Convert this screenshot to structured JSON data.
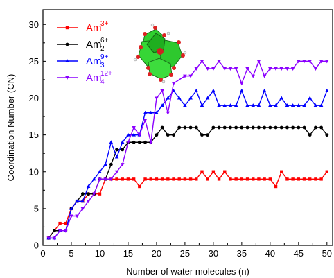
{
  "chart_data": {
    "type": "line",
    "xlabel": "Number of water molecules (n)",
    "ylabel": "Coordination Number (CN)",
    "xlim": [
      0,
      51
    ],
    "ylim": [
      0,
      32
    ],
    "x_ticks": [
      "0",
      "5",
      "10",
      "15",
      "20",
      "25",
      "30",
      "35",
      "40",
      "45",
      "50"
    ],
    "y_ticks": [
      "0",
      "5",
      "10",
      "15",
      "20",
      "25",
      "30"
    ],
    "legend_position": "top-left",
    "inset": "polyhedron-cluster-icon",
    "series": [
      {
        "name": "Am",
        "sub": "",
        "sup": "3+",
        "color": "#ff0000",
        "marker": "square",
        "x": [
          1,
          2,
          3,
          4,
          5,
          6,
          7,
          8,
          9,
          10,
          11,
          12,
          13,
          14,
          15,
          16,
          17,
          18,
          19,
          20,
          21,
          22,
          23,
          24,
          25,
          26,
          27,
          28,
          29,
          30,
          31,
          32,
          33,
          34,
          35,
          36,
          37,
          38,
          39,
          40,
          41,
          42,
          43,
          44,
          45,
          46,
          47,
          48,
          49,
          50
        ],
        "y": [
          1,
          2,
          3,
          3,
          5,
          6,
          6,
          7,
          7,
          7,
          9,
          9,
          9,
          9,
          9,
          9,
          8,
          9,
          9,
          9,
          9,
          9,
          9,
          9,
          9,
          9,
          9,
          10,
          9,
          10,
          9,
          10,
          9,
          9,
          9,
          9,
          9,
          9,
          9,
          9,
          8,
          10,
          9,
          9,
          9,
          9,
          9,
          9,
          9,
          10
        ]
      },
      {
        "name": "Am",
        "sub": "2",
        "sup": "6+",
        "color": "#000000",
        "marker": "circle",
        "x": [
          1,
          2,
          3,
          4,
          5,
          6,
          7,
          8,
          9,
          10,
          11,
          12,
          13,
          14,
          15,
          16,
          17,
          18,
          19,
          20,
          21,
          22,
          23,
          24,
          25,
          26,
          27,
          28,
          29,
          30,
          31,
          32,
          33,
          34,
          35,
          36,
          37,
          38,
          39,
          40,
          41,
          42,
          43,
          44,
          45,
          46,
          47,
          48,
          49,
          50
        ],
        "y": [
          1,
          2,
          2,
          2,
          5,
          6,
          7,
          7,
          7,
          9,
          9,
          11,
          13,
          13,
          14,
          14,
          14,
          14,
          14,
          15,
          16,
          15,
          15,
          16,
          16,
          16,
          16,
          15,
          15,
          16,
          16,
          16,
          16,
          16,
          16,
          16,
          16,
          16,
          16,
          16,
          16,
          16,
          16,
          16,
          16,
          16,
          15,
          16,
          16,
          15
        ]
      },
      {
        "name": "Am",
        "sub": "3",
        "sup": "9+",
        "color": "#0000ff",
        "marker": "triangle",
        "x": [
          1,
          2,
          3,
          4,
          5,
          6,
          7,
          8,
          9,
          10,
          11,
          12,
          13,
          14,
          15,
          16,
          17,
          18,
          19,
          20,
          21,
          22,
          23,
          24,
          25,
          26,
          27,
          28,
          29,
          30,
          31,
          32,
          33,
          34,
          35,
          36,
          37,
          38,
          39,
          40,
          41,
          42,
          43,
          44,
          45,
          46,
          47,
          48,
          49,
          50
        ],
        "y": [
          1,
          1,
          2,
          2,
          5,
          6,
          6,
          8,
          9,
          10,
          11,
          14,
          12,
          14,
          15,
          15,
          15,
          18,
          18,
          18,
          19,
          20,
          21,
          20,
          19,
          20,
          21,
          19,
          20,
          21,
          19,
          19,
          19,
          19,
          21,
          19,
          19,
          19,
          21,
          19,
          19,
          20,
          19,
          19,
          19,
          19,
          20,
          19,
          19,
          21
        ]
      },
      {
        "name": "Am",
        "sub": "4",
        "sup": "12+",
        "color": "#8b00ff",
        "marker": "down-triangle",
        "x": [
          1,
          2,
          3,
          4,
          5,
          6,
          7,
          8,
          9,
          10,
          11,
          12,
          13,
          14,
          15,
          16,
          17,
          18,
          19,
          20,
          21,
          22,
          23,
          25,
          26,
          27,
          28,
          29,
          30,
          31,
          32,
          33,
          34,
          35,
          36,
          37,
          38,
          39,
          40,
          41,
          42,
          43,
          44,
          45,
          46,
          47,
          48,
          49,
          50
        ],
        "y": [
          1,
          1,
          2,
          2,
          4,
          4,
          5,
          6,
          7,
          9,
          9,
          9,
          10,
          11,
          14,
          16,
          15,
          17,
          14,
          20,
          21,
          18,
          22,
          23,
          23,
          24,
          25,
          24,
          24,
          25,
          24,
          24,
          24,
          22,
          24,
          23,
          25,
          23,
          24,
          24,
          24,
          24,
          24,
          25,
          25,
          25,
          24,
          25,
          25
        ]
      }
    ]
  }
}
